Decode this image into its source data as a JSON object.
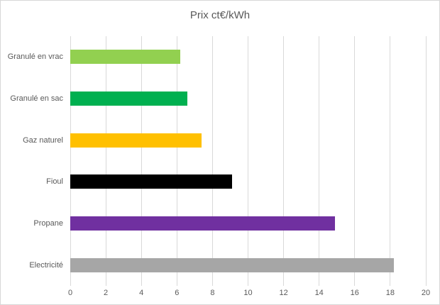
{
  "chart_data": {
    "type": "bar",
    "orientation": "horizontal",
    "title": "Prix ct€/kWh",
    "categories": [
      "Granulé en vrac",
      "Granulé en sac",
      "Gaz naturel",
      "Fioul",
      "Propane",
      "Electricité"
    ],
    "values": [
      6.2,
      6.6,
      7.4,
      9.1,
      14.9,
      18.2
    ],
    "bar_colors": [
      "#92D050",
      "#00B050",
      "#FFC000",
      "#000000",
      "#7030A0",
      "#A6A6A6"
    ],
    "xlabel": "",
    "ylabel": "",
    "xlim": [
      0,
      20
    ],
    "x_ticks": [
      0,
      2,
      4,
      6,
      8,
      10,
      12,
      14,
      16,
      18,
      20
    ],
    "grid": true,
    "legend": "none",
    "style": {
      "gridline_color": "#d9d9d9",
      "axis_text_color": "#595959",
      "title_color": "#595959",
      "chart_border_color": "#d7d7d7",
      "background_color": "#ffffff"
    }
  }
}
